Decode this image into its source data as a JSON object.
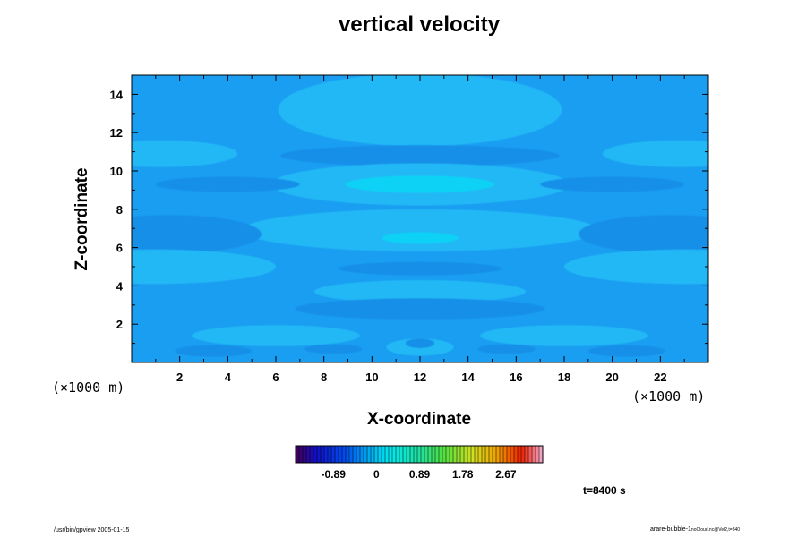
{
  "chart_data": {
    "type": "heatmap",
    "title": "vertical velocity",
    "xlabel": "X-coordinate",
    "ylabel": "Z-coordinate",
    "x_unit": "(×1000 m)",
    "y_unit": "(×1000 m)",
    "xlim": [
      0,
      24
    ],
    "ylim": [
      0,
      15
    ],
    "x_ticks": [
      2,
      4,
      6,
      8,
      10,
      12,
      14,
      16,
      18,
      20,
      22
    ],
    "y_ticks": [
      2,
      4,
      6,
      8,
      10,
      12,
      14
    ],
    "colorbar": {
      "tick_labels": [
        "-0.89",
        "0",
        "0.89",
        "1.78",
        "2.67"
      ],
      "tick_values": [
        -0.89,
        0,
        0.89,
        1.78,
        2.67
      ],
      "range": [
        -1.67,
        3.43
      ]
    },
    "colors": {
      "background_field": "#1a9ef2",
      "weak_negative": "#168fe8",
      "weak_positive": "#22b8f5",
      "positive_peak": "#0ad2f5"
    }
  },
  "time_label": "t=8400 s",
  "footer_left": "/usr/bin/gpview 2005-01-15",
  "footer_right_main": "arare-bubble-1",
  "footer_right_sub": "noCloud.nc@Vel2,t=840"
}
